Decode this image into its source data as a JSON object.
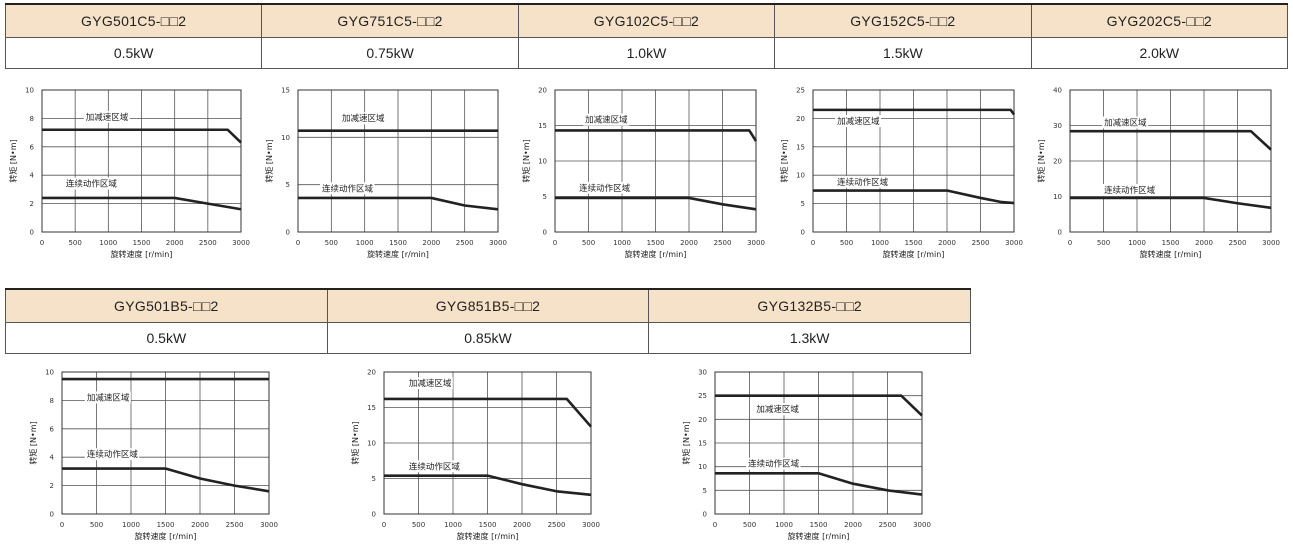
{
  "tables": [
    {
      "models": [
        "GYG501C5-□□2",
        "GYG751C5-□□2",
        "GYG102C5-□□2",
        "GYG152C5-□□2",
        "GYG202C5-□□2"
      ],
      "powers": [
        "0.5kW",
        "0.75kW",
        "1.0kW",
        "1.5kW",
        "2.0kW"
      ]
    },
    {
      "models": [
        "GYG501B5-□□2",
        "GYG851B5-□□2",
        "GYG132B5-□□2"
      ],
      "powers": [
        "0.5kW",
        "0.85kW",
        "1.3kW"
      ]
    }
  ],
  "labels": {
    "ylabel": "转矩 [N•m]",
    "xlabel": "旋转速度 [r/min]",
    "accel": "加减速区域",
    "cont": "连续动作区域"
  },
  "colors": {
    "header_bg": "#f6e2c8",
    "curve": "#222222",
    "grid": "#666666"
  },
  "chart_data": [
    {
      "type": "line",
      "model": "GYG501C5-□□2",
      "xlim": [
        0,
        3000
      ],
      "ylim": [
        0,
        10
      ],
      "xticks": [
        0,
        500,
        1000,
        1500,
        2000,
        2500,
        3000
      ],
      "yticks": [
        0,
        2,
        4,
        6,
        8,
        10
      ],
      "series": [
        {
          "name": "加减速区域",
          "x": [
            0,
            2800,
            3000
          ],
          "y": [
            7.2,
            7.2,
            6.3
          ]
        },
        {
          "name": "连续动作区域",
          "x": [
            0,
            2000,
            2500,
            3000
          ],
          "y": [
            2.4,
            2.4,
            2.0,
            1.6
          ]
        }
      ]
    },
    {
      "type": "line",
      "model": "GYG751C5-□□2",
      "xlim": [
        0,
        3000
      ],
      "ylim": [
        0,
        15
      ],
      "xticks": [
        0,
        500,
        1000,
        1500,
        2000,
        2500,
        3000
      ],
      "yticks": [
        0,
        5,
        10,
        15
      ],
      "series": [
        {
          "name": "加减速区域",
          "x": [
            0,
            3000
          ],
          "y": [
            10.7,
            10.7
          ]
        },
        {
          "name": "连续动作区域",
          "x": [
            0,
            2000,
            2500,
            3000
          ],
          "y": [
            3.6,
            3.6,
            2.8,
            2.4
          ]
        }
      ]
    },
    {
      "type": "line",
      "model": "GYG102C5-□□2",
      "xlim": [
        0,
        3000
      ],
      "ylim": [
        0,
        20
      ],
      "xticks": [
        0,
        500,
        1000,
        1500,
        2000,
        2500,
        3000
      ],
      "yticks": [
        0,
        5,
        10,
        15,
        20
      ],
      "series": [
        {
          "name": "加减速区域",
          "x": [
            0,
            2900,
            3000
          ],
          "y": [
            14.3,
            14.3,
            12.8
          ]
        },
        {
          "name": "连续动作区域",
          "x": [
            0,
            2000,
            2500,
            3000
          ],
          "y": [
            4.8,
            4.8,
            3.9,
            3.2
          ]
        }
      ]
    },
    {
      "type": "line",
      "model": "GYG152C5-□□2",
      "xlim": [
        0,
        3000
      ],
      "ylim": [
        0,
        25
      ],
      "xticks": [
        0,
        500,
        1000,
        1500,
        2000,
        2500,
        3000
      ],
      "yticks": [
        0,
        5,
        10,
        15,
        20,
        25
      ],
      "series": [
        {
          "name": "加减速区域",
          "x": [
            0,
            2950,
            3000
          ],
          "y": [
            21.5,
            21.5,
            20.7
          ]
        },
        {
          "name": "连续动作区域",
          "x": [
            0,
            2000,
            2500,
            2800,
            3000
          ],
          "y": [
            7.3,
            7.3,
            6.0,
            5.3,
            5.1
          ]
        }
      ]
    },
    {
      "type": "line",
      "model": "GYG202C5-□□2",
      "xlim": [
        0,
        3000
      ],
      "ylim": [
        0,
        40
      ],
      "xticks": [
        0,
        500,
        1000,
        1500,
        2000,
        2500,
        3000
      ],
      "yticks": [
        0,
        10,
        20,
        30,
        40
      ],
      "series": [
        {
          "name": "加减速区域",
          "x": [
            0,
            2700,
            3000
          ],
          "y": [
            28.4,
            28.4,
            23.2
          ]
        },
        {
          "name": "连续动作区域",
          "x": [
            0,
            2000,
            2500,
            3000
          ],
          "y": [
            9.6,
            9.6,
            8.1,
            6.8
          ]
        }
      ]
    },
    {
      "type": "line",
      "model": "GYG501B5-□□2",
      "xlim": [
        0,
        3000
      ],
      "ylim": [
        0,
        10
      ],
      "xticks": [
        0,
        500,
        1000,
        1500,
        2000,
        2500,
        3000
      ],
      "yticks": [
        0,
        2,
        4,
        6,
        8,
        10
      ],
      "series": [
        {
          "name": "加减速区域",
          "x": [
            0,
            3000
          ],
          "y": [
            9.5,
            9.5
          ]
        },
        {
          "name": "连续动作区域",
          "x": [
            0,
            1500,
            2000,
            2500,
            3000
          ],
          "y": [
            3.2,
            3.2,
            2.5,
            2.0,
            1.6
          ]
        }
      ]
    },
    {
      "type": "line",
      "model": "GYG851B5-□□2",
      "xlim": [
        0,
        3000
      ],
      "ylim": [
        0,
        20
      ],
      "xticks": [
        0,
        500,
        1000,
        1500,
        2000,
        2500,
        3000
      ],
      "yticks": [
        0,
        5,
        10,
        15,
        20
      ],
      "series": [
        {
          "name": "加减速区域",
          "x": [
            0,
            2650,
            3000
          ],
          "y": [
            16.2,
            16.2,
            12.3
          ]
        },
        {
          "name": "连续动作区域",
          "x": [
            0,
            1500,
            2000,
            2500,
            3000
          ],
          "y": [
            5.4,
            5.4,
            4.2,
            3.2,
            2.7
          ]
        }
      ]
    },
    {
      "type": "line",
      "model": "GYG132B5-□□2",
      "xlim": [
        0,
        3000
      ],
      "ylim": [
        0,
        30
      ],
      "xticks": [
        0,
        500,
        1000,
        1500,
        2000,
        2500,
        3000
      ],
      "yticks": [
        0,
        5,
        10,
        15,
        20,
        25,
        30
      ],
      "series": [
        {
          "name": "加减速区域",
          "x": [
            0,
            2700,
            3000
          ],
          "y": [
            25,
            25,
            20.8
          ]
        },
        {
          "name": "连续动作区域",
          "x": [
            0,
            1500,
            2000,
            2500,
            3000
          ],
          "y": [
            8.6,
            8.6,
            6.4,
            5.0,
            4.1
          ]
        }
      ]
    }
  ]
}
